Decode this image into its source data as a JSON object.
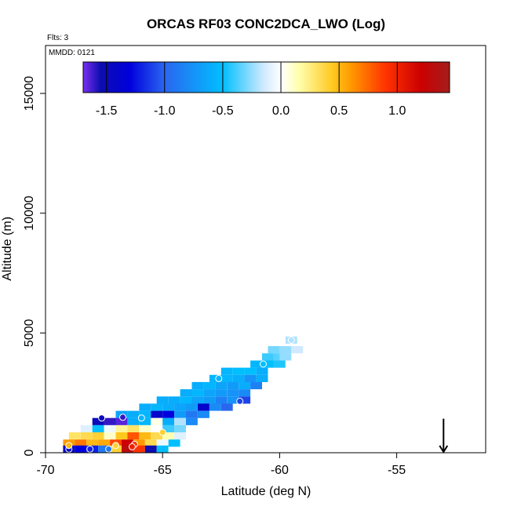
{
  "chart_data": {
    "type": "heatmap",
    "title": "ORCAS RF03 CONC2DCA_LWO (Log)",
    "flights_label": "Flts: 3",
    "date_label": "MMDD: 0121",
    "xlabel": "Latitude (deg N)",
    "ylabel": "Altitude (m)",
    "xlim": [
      -70,
      -51.2
    ],
    "ylim": [
      0,
      17000
    ],
    "x_ticks": [
      -70,
      -65,
      -60,
      -55
    ],
    "x_tick_labels": [
      "-70",
      "-65",
      "-60",
      "-55"
    ],
    "y_ticks": [
      0,
      5000,
      10000,
      15000
    ],
    "y_tick_labels": [
      "0",
      "5000",
      "10000",
      "15000"
    ],
    "colorbar": {
      "range": [
        -1.7,
        1.45
      ],
      "ticks": [
        -1.5,
        -1.0,
        -0.5,
        0.0,
        0.5,
        1.0
      ],
      "tick_labels": [
        "-1.5",
        "-1.0",
        "-0.5",
        "0.0",
        "0.5",
        "1.0"
      ],
      "stops": [
        {
          "value": -1.7,
          "color": "#7b2ff0"
        },
        {
          "value": -1.55,
          "color": "#0d0db0"
        },
        {
          "value": -1.3,
          "color": "#0000dd"
        },
        {
          "value": -1.0,
          "color": "#2a66f0"
        },
        {
          "value": -0.5,
          "color": "#00bfff"
        },
        {
          "value": -0.15,
          "color": "#cfe9ff"
        },
        {
          "value": 0.0,
          "color": "#ffffff"
        },
        {
          "value": 0.15,
          "color": "#ffffb0"
        },
        {
          "value": 0.45,
          "color": "#ffc81e"
        },
        {
          "value": 0.6,
          "color": "#ff9a00"
        },
        {
          "value": 0.9,
          "color": "#ff3300"
        },
        {
          "value": 1.2,
          "color": "#cc0000"
        },
        {
          "value": 1.45,
          "color": "#a51d1d"
        }
      ]
    },
    "arrow": {
      "x": -53.0,
      "y_top": 700,
      "y_bottom": 0
    },
    "cells": [
      {
        "x": -59.5,
        "y": 4700,
        "v": -0.2
      },
      {
        "x": -59.75,
        "y": 4300,
        "v": -0.25
      },
      {
        "x": -60.25,
        "y": 4300,
        "v": -0.3
      },
      {
        "x": -59.25,
        "y": 4300,
        "v": -0.15
      },
      {
        "x": -60.5,
        "y": 4000,
        "v": -0.4
      },
      {
        "x": -60.0,
        "y": 4000,
        "v": -0.35
      },
      {
        "x": -59.75,
        "y": 4000,
        "v": -0.25
      },
      {
        "x": -61.0,
        "y": 3700,
        "v": -0.55
      },
      {
        "x": -60.5,
        "y": 3700,
        "v": -0.5
      },
      {
        "x": -60.0,
        "y": 3700,
        "v": -0.45
      },
      {
        "x": -62.25,
        "y": 3400,
        "v": -0.55
      },
      {
        "x": -61.75,
        "y": 3400,
        "v": -0.5
      },
      {
        "x": -61.25,
        "y": 3400,
        "v": -0.5
      },
      {
        "x": -60.75,
        "y": 3400,
        "v": -0.6
      },
      {
        "x": -62.75,
        "y": 3100,
        "v": -0.55
      },
      {
        "x": -62.25,
        "y": 3100,
        "v": -0.55
      },
      {
        "x": -61.75,
        "y": 3100,
        "v": -0.6
      },
      {
        "x": -61.25,
        "y": 3100,
        "v": -0.75
      },
      {
        "x": -60.75,
        "y": 3100,
        "v": -0.6
      },
      {
        "x": -63.5,
        "y": 2800,
        "v": -0.6
      },
      {
        "x": -63.0,
        "y": 2800,
        "v": -0.55
      },
      {
        "x": -62.5,
        "y": 2800,
        "v": -0.65
      },
      {
        "x": -62.0,
        "y": 2800,
        "v": -0.7
      },
      {
        "x": -61.5,
        "y": 2800,
        "v": -0.6
      },
      {
        "x": -61.0,
        "y": 2800,
        "v": -0.85
      },
      {
        "x": -64.0,
        "y": 2500,
        "v": -0.6
      },
      {
        "x": -63.5,
        "y": 2500,
        "v": -0.55
      },
      {
        "x": -63.0,
        "y": 2500,
        "v": -0.65
      },
      {
        "x": -62.5,
        "y": 2500,
        "v": -0.7
      },
      {
        "x": -62.0,
        "y": 2500,
        "v": -0.75
      },
      {
        "x": -61.5,
        "y": 2500,
        "v": -0.8
      },
      {
        "x": -65.0,
        "y": 2200,
        "v": -0.6
      },
      {
        "x": -64.5,
        "y": 2200,
        "v": -0.6
      },
      {
        "x": -64.0,
        "y": 2200,
        "v": -0.55
      },
      {
        "x": -63.5,
        "y": 2200,
        "v": -0.65
      },
      {
        "x": -63.0,
        "y": 2200,
        "v": -0.7
      },
      {
        "x": -62.5,
        "y": 2200,
        "v": -0.85
      },
      {
        "x": -62.0,
        "y": 2200,
        "v": -0.75
      },
      {
        "x": -61.5,
        "y": 2200,
        "v": -1.1
      },
      {
        "x": -65.75,
        "y": 1900,
        "v": -0.6
      },
      {
        "x": -65.25,
        "y": 1900,
        "v": -0.55
      },
      {
        "x": -64.75,
        "y": 1900,
        "v": -0.6
      },
      {
        "x": -64.25,
        "y": 1900,
        "v": -0.65
      },
      {
        "x": -63.75,
        "y": 1900,
        "v": -0.7
      },
      {
        "x": -63.25,
        "y": 1900,
        "v": -1.4
      },
      {
        "x": -62.75,
        "y": 1900,
        "v": -0.8
      },
      {
        "x": -62.25,
        "y": 1900,
        "v": -1.0
      },
      {
        "x": -66.75,
        "y": 1600,
        "v": -0.65
      },
      {
        "x": -66.25,
        "y": 1600,
        "v": -0.6
      },
      {
        "x": -65.75,
        "y": 1600,
        "v": -0.55
      },
      {
        "x": -65.25,
        "y": 1600,
        "v": -1.4
      },
      {
        "x": -64.75,
        "y": 1600,
        "v": -1.3
      },
      {
        "x": -64.25,
        "y": 1600,
        "v": -0.7
      },
      {
        "x": -63.75,
        "y": 1600,
        "v": -0.9
      },
      {
        "x": -63.25,
        "y": 1600,
        "v": -0.8
      },
      {
        "x": -67.75,
        "y": 1300,
        "v": -1.5
      },
      {
        "x": -67.25,
        "y": 1300,
        "v": -1.6
      },
      {
        "x": -66.75,
        "y": 1300,
        "v": -1.65
      },
      {
        "x": -66.25,
        "y": 1300,
        "v": -0.6
      },
      {
        "x": -65.75,
        "y": 1300,
        "v": -0.55
      },
      {
        "x": -65.25,
        "y": 1300,
        "v": 0.05
      },
      {
        "x": -64.75,
        "y": 1300,
        "v": -0.6
      },
      {
        "x": -64.25,
        "y": 1300,
        "v": -0.2
      },
      {
        "x": -63.75,
        "y": 1300,
        "v": -0.8
      },
      {
        "x": -68.25,
        "y": 1000,
        "v": -0.1
      },
      {
        "x": -67.75,
        "y": 1000,
        "v": -0.5
      },
      {
        "x": -67.25,
        "y": 1000,
        "v": -0.05
      },
      {
        "x": -66.75,
        "y": 1000,
        "v": 0.2
      },
      {
        "x": -66.25,
        "y": 1000,
        "v": 0.3
      },
      {
        "x": -65.75,
        "y": 1000,
        "v": 0.1
      },
      {
        "x": -65.25,
        "y": 1000,
        "v": 0.0
      },
      {
        "x": -64.75,
        "y": 1000,
        "v": -0.4
      },
      {
        "x": -64.25,
        "y": 1000,
        "v": -0.3
      },
      {
        "x": -68.75,
        "y": 700,
        "v": 0.3
      },
      {
        "x": -68.25,
        "y": 700,
        "v": 0.35
      },
      {
        "x": -67.75,
        "y": 700,
        "v": 0.4
      },
      {
        "x": -67.25,
        "y": 700,
        "v": 0.1
      },
      {
        "x": -66.75,
        "y": 700,
        "v": 0.45
      },
      {
        "x": -66.25,
        "y": 700,
        "v": 0.8
      },
      {
        "x": -65.75,
        "y": 700,
        "v": 0.5
      },
      {
        "x": -65.25,
        "y": 700,
        "v": 0.35
      },
      {
        "x": -64.75,
        "y": 700,
        "v": 0.15
      },
      {
        "x": -64.25,
        "y": 700,
        "v": -0.1
      },
      {
        "x": -69.0,
        "y": 400,
        "v": 0.6
      },
      {
        "x": -68.5,
        "y": 400,
        "v": 0.7
      },
      {
        "x": -68.0,
        "y": 400,
        "v": 0.5
      },
      {
        "x": -67.5,
        "y": 400,
        "v": 0.55
      },
      {
        "x": -67.0,
        "y": 400,
        "v": 0.85
      },
      {
        "x": -66.5,
        "y": 400,
        "v": 1.2
      },
      {
        "x": -66.0,
        "y": 400,
        "v": 0.6
      },
      {
        "x": -65.5,
        "y": 400,
        "v": 0.35
      },
      {
        "x": -65.0,
        "y": 400,
        "v": -0.05
      },
      {
        "x": -64.5,
        "y": 400,
        "v": -0.5
      },
      {
        "x": -69.0,
        "y": 150,
        "v": -1.45
      },
      {
        "x": -68.5,
        "y": 150,
        "v": -1.3
      },
      {
        "x": -68.0,
        "y": 150,
        "v": -1.2
      },
      {
        "x": -67.5,
        "y": 150,
        "v": -0.9
      },
      {
        "x": -67.0,
        "y": 150,
        "v": 0.4
      },
      {
        "x": -66.5,
        "y": 150,
        "v": 1.3
      },
      {
        "x": -66.0,
        "y": 150,
        "v": 0.9
      },
      {
        "x": -65.5,
        "y": 150,
        "v": -1.55
      },
      {
        "x": -65.0,
        "y": 150,
        "v": -0.5
      }
    ],
    "markers": [
      {
        "x": -59.5,
        "y": 4700,
        "v": -0.2
      },
      {
        "x": -60.7,
        "y": 3700,
        "v": -0.5
      },
      {
        "x": -62.6,
        "y": 3100,
        "v": -0.55
      },
      {
        "x": -61.7,
        "y": 2150,
        "v": -1.1
      },
      {
        "x": -67.6,
        "y": 1450,
        "v": -1.5
      },
      {
        "x": -66.7,
        "y": 1480,
        "v": -1.6
      },
      {
        "x": -65.9,
        "y": 1450,
        "v": -0.55
      },
      {
        "x": -65.0,
        "y": 850,
        "v": 0.4
      },
      {
        "x": -66.2,
        "y": 350,
        "v": 0.9
      },
      {
        "x": -66.3,
        "y": 250,
        "v": 1.0
      },
      {
        "x": -67.0,
        "y": 300,
        "v": 0.4
      },
      {
        "x": -68.1,
        "y": 150,
        "v": -1.2
      },
      {
        "x": -69.0,
        "y": 150,
        "v": -1.45
      },
      {
        "x": -69.0,
        "y": 300,
        "v": 0.5
      },
      {
        "x": -67.3,
        "y": 150,
        "v": -0.9
      }
    ]
  }
}
